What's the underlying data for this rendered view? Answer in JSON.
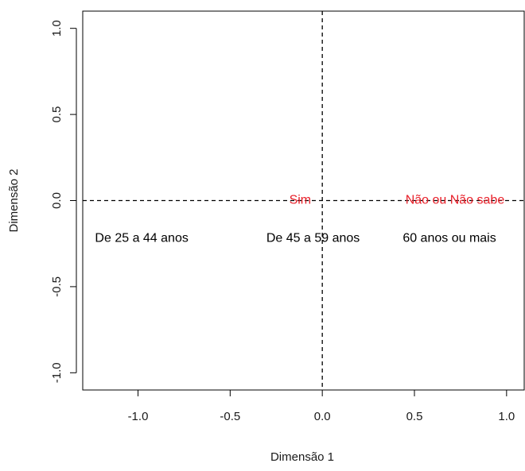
{
  "chart_data": {
    "type": "scatter",
    "title": "",
    "xlabel": "Dimensão 1",
    "ylabel": "Dimensão 2",
    "xlim": [
      -1.3,
      1.1
    ],
    "ylim": [
      -1.1,
      1.1
    ],
    "xticks": [
      -1.0,
      -0.5,
      0.0,
      0.5,
      1.0
    ],
    "yticks": [
      -1.0,
      -0.5,
      0.0,
      0.5,
      1.0
    ],
    "xtick_labels": [
      "-1.0",
      "-0.5",
      "0.0",
      "0.5",
      "1.0"
    ],
    "ytick_labels": [
      "-1.0",
      "-0.5",
      "0.0",
      "0.5",
      "1.0"
    ],
    "reference_lines": {
      "x": 0,
      "y": 0,
      "style": "dashed"
    },
    "grid": false,
    "series": [
      {
        "color": "#000000",
        "points": [
          {
            "label": "De 25 a 44 anos",
            "x": -0.98,
            "y": -0.22
          },
          {
            "label": "De 45 a 59 anos",
            "x": -0.05,
            "y": -0.22
          },
          {
            "label": "60 anos ou mais",
            "x": 0.69,
            "y": -0.22
          }
        ]
      },
      {
        "color": "#e8202a",
        "points": [
          {
            "label": "Sim",
            "x": -0.12,
            "y": 0.0
          },
          {
            "label": "Não ou Não sabe",
            "x": 0.72,
            "y": 0.0
          }
        ]
      }
    ]
  }
}
